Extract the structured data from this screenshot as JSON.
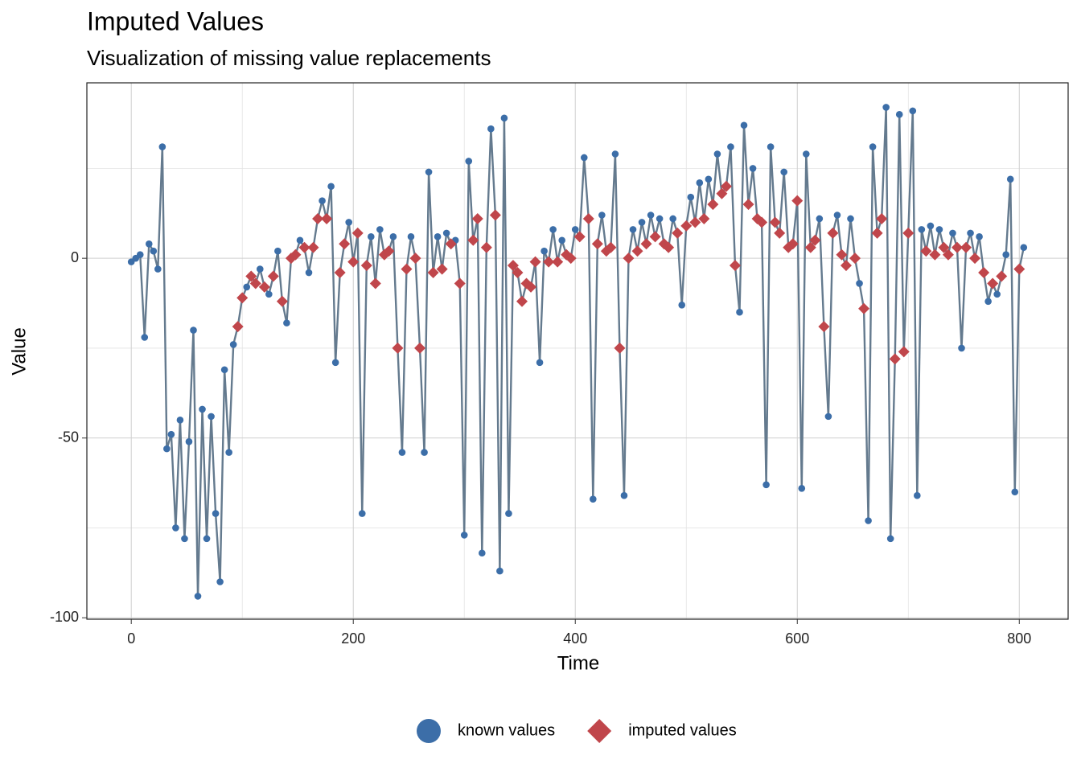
{
  "chart_data": {
    "type": "line",
    "title": "Imputed Values",
    "subtitle": "Visualization of missing value replacements",
    "x_label": "Time",
    "y_label": "Value",
    "xlim": [
      -40,
      844
    ],
    "ylim": [
      -100.4,
      48.8
    ],
    "xticks": [
      0,
      200,
      400,
      600,
      800
    ],
    "yticks": [
      -100,
      -50,
      0
    ],
    "xminor": [
      100,
      300,
      500,
      700
    ],
    "yminor": [
      -75,
      -25,
      25
    ],
    "grid": true,
    "legend": "bottom",
    "line_color": "#647a8e",
    "x": [
      0,
      4,
      8,
      12,
      16,
      20,
      24,
      28,
      32,
      36,
      40,
      44,
      48,
      52,
      56,
      60,
      64,
      68,
      72,
      76,
      80,
      84,
      88,
      92,
      96,
      100,
      104,
      108,
      112,
      116,
      120,
      124,
      128,
      132,
      136,
      140,
      144,
      148,
      152,
      156,
      160,
      164,
      168,
      172,
      176,
      180,
      184,
      188,
      192,
      196,
      200,
      204,
      208,
      212,
      216,
      220,
      224,
      228,
      232,
      236,
      240,
      244,
      248,
      252,
      256,
      260,
      264,
      268,
      272,
      276,
      280,
      284,
      288,
      292,
      296,
      300,
      304,
      308,
      312,
      316,
      320,
      324,
      328,
      332,
      336,
      340,
      344,
      348,
      352,
      356,
      360,
      364,
      368,
      372,
      376,
      380,
      384,
      388,
      392,
      396,
      400,
      404,
      408,
      412,
      416,
      420,
      424,
      428,
      432,
      436,
      440,
      444,
      448,
      452,
      456,
      460,
      464,
      468,
      472,
      476,
      480,
      484,
      488,
      492,
      496,
      500,
      504,
      508,
      512,
      516,
      520,
      524,
      528,
      532,
      536,
      540,
      544,
      548,
      552,
      556,
      560,
      564,
      568,
      572,
      576,
      580,
      584,
      588,
      592,
      596,
      600,
      604,
      608,
      612,
      616,
      620,
      624,
      628,
      632,
      636,
      640,
      644,
      648,
      652,
      656,
      660,
      664,
      668,
      672,
      676,
      680,
      684,
      688,
      692,
      696,
      700,
      704,
      708,
      712,
      716,
      720,
      724,
      728,
      732,
      736,
      740,
      744,
      748,
      752,
      756,
      760,
      764,
      768,
      772,
      776,
      780,
      784,
      788,
      792,
      796,
      800,
      804
    ],
    "series": [
      {
        "name": "known values",
        "color": "#3c6ea8",
        "marker": "circle",
        "values": [
          -1,
          0,
          1,
          -22,
          4,
          2,
          -3,
          31,
          -53,
          -49,
          -75,
          -45,
          -78,
          -51,
          -20,
          -94,
          -42,
          -78,
          -44,
          -71,
          -90,
          -31,
          -54,
          -24,
          null,
          null,
          -8,
          null,
          null,
          -3,
          null,
          -10,
          null,
          2,
          null,
          -18,
          null,
          null,
          5,
          null,
          -4,
          null,
          null,
          16,
          null,
          20,
          -29,
          null,
          null,
          10,
          null,
          null,
          -71,
          null,
          6,
          null,
          8,
          null,
          null,
          6,
          null,
          -54,
          null,
          6,
          null,
          null,
          -54,
          24,
          null,
          6,
          null,
          7,
          null,
          5,
          null,
          -77,
          27,
          null,
          null,
          -82,
          null,
          36,
          null,
          -87,
          39,
          -71,
          null,
          null,
          null,
          null,
          null,
          null,
          -29,
          2,
          null,
          8,
          null,
          5,
          null,
          null,
          8,
          null,
          28,
          null,
          -67,
          null,
          12,
          null,
          null,
          29,
          null,
          -66,
          null,
          8,
          null,
          10,
          null,
          12,
          null,
          11,
          null,
          null,
          11,
          null,
          -13,
          null,
          17,
          null,
          21,
          null,
          22,
          null,
          29,
          null,
          null,
          31,
          null,
          -15,
          37,
          null,
          25,
          null,
          null,
          -63,
          31,
          null,
          null,
          24,
          null,
          null,
          null,
          -64,
          29,
          null,
          null,
          11,
          null,
          -44,
          null,
          12,
          null,
          null,
          11,
          null,
          -7,
          null,
          -73,
          31,
          null,
          null,
          42,
          -78,
          null,
          40,
          null,
          null,
          41,
          -66,
          8,
          null,
          9,
          null,
          8,
          null,
          null,
          7,
          null,
          -25,
          null,
          7,
          null,
          6,
          null,
          -12,
          null,
          -10,
          null,
          1,
          22,
          -65,
          null,
          3
        ]
      },
      {
        "name": "imputed values",
        "color": "#c0464b",
        "marker": "diamond",
        "values": [
          null,
          null,
          null,
          null,
          null,
          null,
          null,
          null,
          null,
          null,
          null,
          null,
          null,
          null,
          null,
          null,
          null,
          null,
          null,
          null,
          null,
          null,
          null,
          null,
          -19,
          -11,
          null,
          -5,
          -7,
          null,
          -8,
          null,
          -5,
          null,
          -12,
          null,
          0,
          1,
          null,
          3,
          null,
          3,
          11,
          null,
          11,
          null,
          null,
          -4,
          4,
          null,
          -1,
          7,
          null,
          -2,
          null,
          -7,
          null,
          1,
          2,
          null,
          -25,
          null,
          -3,
          null,
          0,
          -25,
          null,
          null,
          -4,
          null,
          -3,
          null,
          4,
          null,
          -7,
          null,
          null,
          5,
          11,
          null,
          3,
          null,
          12,
          null,
          null,
          null,
          -2,
          -4,
          -12,
          -7,
          -8,
          -1,
          null,
          null,
          -1,
          null,
          -1,
          null,
          1,
          0,
          null,
          6,
          null,
          11,
          null,
          4,
          null,
          2,
          3,
          null,
          -25,
          null,
          0,
          null,
          2,
          null,
          4,
          null,
          6,
          null,
          4,
          3,
          null,
          7,
          null,
          9,
          null,
          10,
          null,
          11,
          null,
          15,
          null,
          18,
          20,
          null,
          -2,
          null,
          null,
          15,
          null,
          11,
          10,
          null,
          null,
          10,
          7,
          null,
          3,
          4,
          16,
          null,
          null,
          3,
          5,
          null,
          -19,
          null,
          7,
          null,
          1,
          -2,
          null,
          0,
          null,
          -14,
          null,
          null,
          7,
          11,
          null,
          null,
          -28,
          null,
          -26,
          7,
          null,
          null,
          null,
          2,
          null,
          1,
          null,
          3,
          1,
          null,
          3,
          null,
          3,
          null,
          0,
          null,
          -4,
          null,
          -7,
          null,
          -5,
          null,
          null,
          null,
          -3,
          null
        ]
      }
    ]
  }
}
